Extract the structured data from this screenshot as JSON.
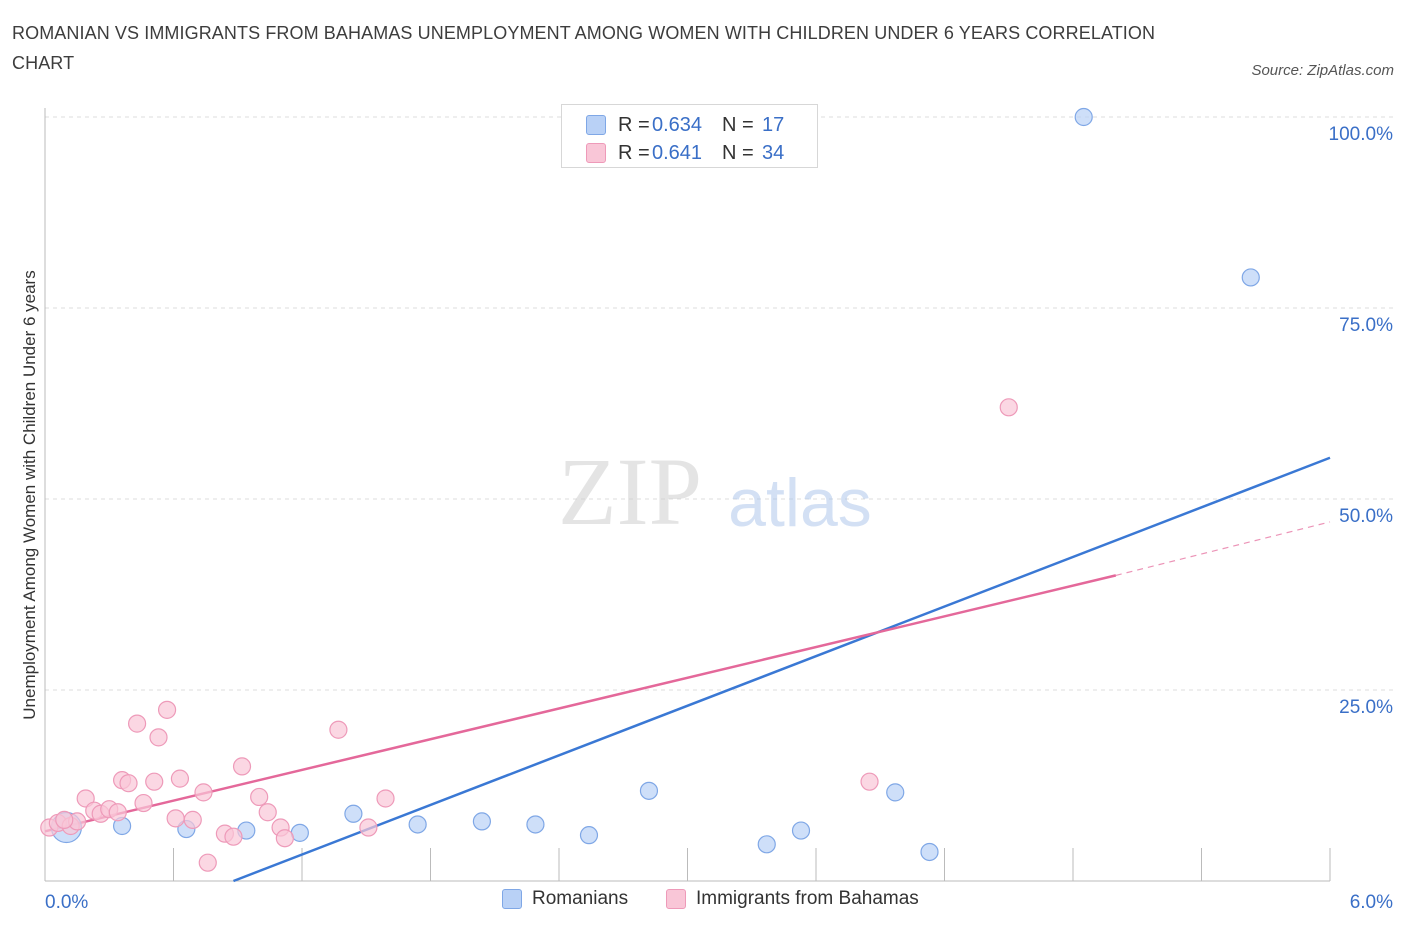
{
  "title": "ROMANIAN VS IMMIGRANTS FROM BAHAMAS UNEMPLOYMENT AMONG WOMEN WITH CHILDREN UNDER 6 YEARS CORRELATION CHART",
  "source": "Source: ZipAtlas.com",
  "watermark": {
    "zip": "ZIP",
    "atlas": "atlas"
  },
  "colors": {
    "blue": "#3a78d4",
    "blue_fill": "#b9d1f6",
    "blue_stroke": "#7fa7e6",
    "pink": "#e4689a",
    "pink_fill": "#f9c6d7",
    "pink_stroke": "#ee9ab9",
    "tick_label": "#3a6fc7",
    "grid": "#dcdcdc"
  },
  "legend": [
    {
      "r_label": "R =",
      "r_value": "0.634",
      "n_label": "N =",
      "n_value": "17"
    },
    {
      "r_label": "R =",
      "r_value": "0.641",
      "n_label": "N =",
      "n_value": "34"
    }
  ],
  "chart_data": {
    "type": "scatter",
    "title": "ROMANIAN VS IMMIGRANTS FROM BAHAMAS UNEMPLOYMENT AMONG WOMEN WITH CHILDREN UNDER 6 YEARS CORRELATION CHART",
    "xlabel": "",
    "ylabel": "Unemployment Among Women with Children Under 6 years",
    "xlim": [
      0,
      6
    ],
    "ylim": [
      0,
      100
    ],
    "x_tick_labels": [
      "0.0%",
      "6.0%"
    ],
    "y_ticks": [
      25,
      50,
      75,
      100
    ],
    "y_tick_labels": [
      "25.0%",
      "50.0%",
      "75.0%",
      "100.0%"
    ],
    "grid": true,
    "series": [
      {
        "name": "Romanians",
        "points": [
          [
            0.1,
            7.0
          ],
          [
            0.36,
            7.2
          ],
          [
            0.66,
            6.8
          ],
          [
            0.94,
            6.6
          ],
          [
            1.19,
            6.3
          ],
          [
            1.44,
            8.8
          ],
          [
            1.74,
            7.4
          ],
          [
            2.04,
            7.8
          ],
          [
            2.29,
            7.4
          ],
          [
            2.54,
            6.0
          ],
          [
            2.82,
            11.8
          ],
          [
            3.37,
            4.8
          ],
          [
            3.53,
            6.6
          ],
          [
            3.97,
            11.6
          ],
          [
            4.13,
            3.8
          ],
          [
            4.85,
            100.0
          ],
          [
            5.63,
            79.0
          ]
        ],
        "trend": {
          "x": [
            0.88,
            6.0
          ],
          "y": [
            0.0,
            55.4
          ]
        }
      },
      {
        "name": "Immigrants from Bahamas",
        "points": [
          [
            0.02,
            7.0
          ],
          [
            0.06,
            7.6
          ],
          [
            0.12,
            7.2
          ],
          [
            0.15,
            7.8
          ],
          [
            0.19,
            10.8
          ],
          [
            0.23,
            9.2
          ],
          [
            0.26,
            8.8
          ],
          [
            0.3,
            9.4
          ],
          [
            0.34,
            9.0
          ],
          [
            0.36,
            13.2
          ],
          [
            0.39,
            12.8
          ],
          [
            0.43,
            20.6
          ],
          [
            0.46,
            10.2
          ],
          [
            0.51,
            13.0
          ],
          [
            0.53,
            18.8
          ],
          [
            0.57,
            22.4
          ],
          [
            0.61,
            8.2
          ],
          [
            0.63,
            13.4
          ],
          [
            0.69,
            8.0
          ],
          [
            0.74,
            11.6
          ],
          [
            0.76,
            2.4
          ],
          [
            0.84,
            6.2
          ],
          [
            0.88,
            5.8
          ],
          [
            0.92,
            15.0
          ],
          [
            1.0,
            11.0
          ],
          [
            1.04,
            9.0
          ],
          [
            1.1,
            7.0
          ],
          [
            1.12,
            5.6
          ],
          [
            1.37,
            19.8
          ],
          [
            1.51,
            7.0
          ],
          [
            1.59,
            10.8
          ],
          [
            3.85,
            13.0
          ],
          [
            4.5,
            62.0
          ],
          [
            0.09,
            8.0
          ]
        ],
        "trend": {
          "x": [
            0.0,
            5.0
          ],
          "y": [
            6.5,
            40.0
          ]
        },
        "trend_extension": {
          "x": [
            5.0,
            6.0
          ],
          "y": [
            40.0,
            47.0
          ]
        }
      }
    ]
  },
  "bottom_legend": [
    "Romanians",
    "Immigrants from Bahamas"
  ]
}
